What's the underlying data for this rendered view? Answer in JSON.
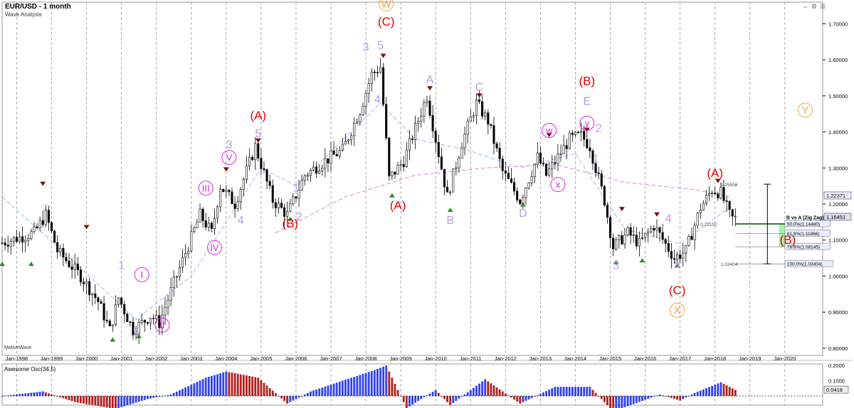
{
  "header": {
    "title": "EUR/USD - 1 month",
    "subtitle": "Wave Analysis"
  },
  "branding": "MotiveWave",
  "toolbar": {
    "nav_icon": "nav-arrows-icon",
    "settings_icon": "settings-icon",
    "close_icon": "close-icon"
  },
  "colors": {
    "bull": "#000000",
    "bear": "#000000",
    "red_labels": "#e00000",
    "orange_labels": "#f7a23c",
    "violet_labels": "#b89ae8",
    "magenta_labels": "#e020e0",
    "osc_up": "#3344ee",
    "osc_down": "#b22222",
    "fib_zone": "#90ee90",
    "fib_line": "#2e8b2e"
  },
  "chart_data": {
    "type": "candlestick",
    "title": "EUR/USD - 1 month",
    "price_axis": {
      "range": [
        0.78,
        1.76
      ],
      "ticks": [
        "1.70000",
        "1.60000",
        "1.50000",
        "1.40000",
        "1.30000",
        "1.20000",
        "1.10000",
        "1.00000",
        "0.90000",
        "0.80000"
      ],
      "current_price_labels": [
        "1.22371",
        "1.16451"
      ]
    },
    "time_axis": {
      "range": [
        "1997-08",
        "2021-02"
      ],
      "ticks": [
        "Jan-1998",
        "Jan-1999",
        "Jan-2000",
        "Jan-2001",
        "Jan-2002",
        "Jan-2003",
        "Jan-2004",
        "Jan-2005",
        "Jan-2006",
        "Jan-2007",
        "Jan-2008",
        "Jan-2009",
        "Jan-2010",
        "Jan-2011",
        "Jan-2012",
        "Jan-2013",
        "Jan-2014",
        "Jan-2015",
        "Jan-2016",
        "Jan-2017",
        "Jan-2018",
        "Jan-2019",
        "Jan-2020"
      ]
    },
    "price_path_keypoints": [
      [
        "1997-08",
        1.09
      ],
      [
        "1997-12",
        1.1
      ],
      [
        "1998-08",
        1.12
      ],
      [
        "1998-12",
        1.17
      ],
      [
        "1999-04",
        1.07
      ],
      [
        "1999-12",
        1.0
      ],
      [
        "2000-06",
        0.93
      ],
      [
        "2000-10",
        0.85
      ],
      [
        "2001-01",
        0.94
      ],
      [
        "2001-06",
        0.85
      ],
      [
        "2001-12",
        0.89
      ],
      [
        "2002-03",
        0.87
      ],
      [
        "2002-08",
        0.98
      ],
      [
        "2003-05",
        1.17
      ],
      [
        "2003-09",
        1.12
      ],
      [
        "2003-12",
        1.25
      ],
      [
        "2004-05",
        1.2
      ],
      [
        "2004-12",
        1.36
      ],
      [
        "2005-06",
        1.21
      ],
      [
        "2005-11",
        1.17
      ],
      [
        "2006-05",
        1.28
      ],
      [
        "2006-12",
        1.32
      ],
      [
        "2007-06",
        1.35
      ],
      [
        "2007-12",
        1.46
      ],
      [
        "2008-04",
        1.56
      ],
      [
        "2008-07",
        1.58
      ],
      [
        "2008-10",
        1.27
      ],
      [
        "2009-03",
        1.32
      ],
      [
        "2009-11",
        1.5
      ],
      [
        "2010-06",
        1.22
      ],
      [
        "2010-11",
        1.37
      ],
      [
        "2011-04",
        1.48
      ],
      [
        "2011-08",
        1.43
      ],
      [
        "2012-01",
        1.29
      ],
      [
        "2012-07",
        1.21
      ],
      [
        "2013-01",
        1.33
      ],
      [
        "2013-04",
        1.28
      ],
      [
        "2013-12",
        1.38
      ],
      [
        "2014-04",
        1.39
      ],
      [
        "2014-07",
        1.36
      ],
      [
        "2014-12",
        1.21
      ],
      [
        "2015-03",
        1.08
      ],
      [
        "2015-08",
        1.12
      ],
      [
        "2015-12",
        1.09
      ],
      [
        "2016-05",
        1.14
      ],
      [
        "2016-12",
        1.05
      ],
      [
        "2017-04",
        1.07
      ],
      [
        "2017-09",
        1.19
      ],
      [
        "2018-01",
        1.24
      ],
      [
        "2018-04",
        1.23
      ],
      [
        "2018-07",
        1.17
      ],
      [
        "2018-08",
        1.16
      ]
    ],
    "wave_labels": [
      {
        "text": "W",
        "date": "2008-08",
        "price": 1.745,
        "style": "orange-circle"
      },
      {
        "text": "(C)",
        "date": "2008-08",
        "price": 1.695,
        "style": "red"
      },
      {
        "text": "3",
        "date": "2008-01",
        "price": 1.625,
        "style": "violet"
      },
      {
        "text": "5",
        "date": "2008-06",
        "price": 1.63,
        "style": "violet"
      },
      {
        "text": "4",
        "date": "2008-05",
        "price": 1.48,
        "style": "violet"
      },
      {
        "text": "(A)",
        "date": "2004-12",
        "price": 1.435,
        "style": "red"
      },
      {
        "text": "5",
        "date": "2004-12",
        "price": 1.385,
        "style": "violet"
      },
      {
        "text": "3",
        "date": "2004-02",
        "price": 1.355,
        "style": "violet"
      },
      {
        "text": "V",
        "date": "2004-02",
        "price": 1.32,
        "style": "magenta-circle"
      },
      {
        "text": "III",
        "date": "2003-06",
        "price": 1.235,
        "style": "magenta-circle"
      },
      {
        "text": "4",
        "date": "2004-06",
        "price": 1.145,
        "style": "violet"
      },
      {
        "text": "IV",
        "date": "2003-09",
        "price": 1.07,
        "style": "magenta-circle"
      },
      {
        "text": "I",
        "date": "2001-08",
        "price": 0.995,
        "style": "magenta-circle"
      },
      {
        "text": "II",
        "date": "2002-03",
        "price": 0.855,
        "style": "magenta-circle"
      },
      {
        "text": "1",
        "date": "2001-01",
        "price": 1.02,
        "style": "violet"
      },
      {
        "text": "2",
        "date": "2001-06",
        "price": 0.835,
        "style": "violet"
      },
      {
        "text": "1",
        "date": "2006-01",
        "price": 1.235,
        "style": "violet"
      },
      {
        "text": "2",
        "date": "2006-02",
        "price": 1.155,
        "style": "violet"
      },
      {
        "text": "(B)",
        "date": "2005-11",
        "price": 1.135,
        "style": "red"
      },
      {
        "text": "(A)",
        "date": "2008-12",
        "price": 1.185,
        "style": "red"
      },
      {
        "text": "A",
        "date": "2009-11",
        "price": 1.535,
        "style": "violet"
      },
      {
        "text": "B",
        "date": "2010-06",
        "price": 1.145,
        "style": "violet"
      },
      {
        "text": "C",
        "date": "2011-04",
        "price": 1.515,
        "style": "violet"
      },
      {
        "text": "D",
        "date": "2012-07",
        "price": 1.165,
        "style": "violet"
      },
      {
        "text": "w",
        "date": "2013-04",
        "price": 1.395,
        "style": "magenta-circle"
      },
      {
        "text": "x",
        "date": "2013-07",
        "price": 1.245,
        "style": "magenta-circle"
      },
      {
        "text": "y",
        "date": "2014-05",
        "price": 1.415,
        "style": "magenta-circle"
      },
      {
        "text": "(B)",
        "date": "2014-05",
        "price": 1.53,
        "style": "red"
      },
      {
        "text": "E",
        "date": "2014-05",
        "price": 1.475,
        "style": "violet"
      },
      {
        "text": "2",
        "date": "2014-09",
        "price": 1.4,
        "style": "violet"
      },
      {
        "text": "1",
        "date": "2014-08",
        "price": 1.315,
        "style": "violet"
      },
      {
        "text": "3",
        "date": "2015-03",
        "price": 1.02,
        "style": "violet"
      },
      {
        "text": "4",
        "date": "2016-09",
        "price": 1.15,
        "style": "violet"
      },
      {
        "text": "5",
        "date": "2016-12",
        "price": 1.025,
        "style": "violet"
      },
      {
        "text": "(C)",
        "date": "2016-12",
        "price": 0.95,
        "style": "red"
      },
      {
        "text": "X",
        "date": "2016-12",
        "price": 0.895,
        "style": "orange-circle"
      },
      {
        "text": "(A)",
        "date": "2018-01",
        "price": 1.275,
        "style": "red"
      },
      {
        "text": "Y",
        "date": "2020-08",
        "price": 1.45,
        "style": "orange-circle"
      },
      {
        "text": "(B)",
        "date": "2020-02",
        "price": 1.09,
        "style": "red"
      }
    ],
    "swing_markers": [
      {
        "date": "1998-10",
        "price": 1.25,
        "type": "high"
      },
      {
        "date": "2000-01",
        "price": 1.13,
        "type": "high"
      },
      {
        "date": "2004-01",
        "price": 1.29,
        "type": "high"
      },
      {
        "date": "2004-12",
        "price": 1.37,
        "type": "high"
      },
      {
        "date": "2008-07",
        "price": 1.605,
        "type": "high"
      },
      {
        "date": "2009-11",
        "price": 1.515,
        "type": "high"
      },
      {
        "date": "2011-04",
        "price": 1.495,
        "type": "high"
      },
      {
        "date": "2013-04",
        "price": 1.385,
        "type": "high"
      },
      {
        "date": "2014-05",
        "price": 1.4,
        "type": "high"
      },
      {
        "date": "2015-05",
        "price": 1.18,
        "type": "high"
      },
      {
        "date": "2016-05",
        "price": 1.165,
        "type": "high"
      },
      {
        "date": "2018-02",
        "price": 1.258,
        "type": "high"
      },
      {
        "date": "1997-08",
        "price": 1.04,
        "type": "low"
      },
      {
        "date": "1998-06",
        "price": 1.04,
        "type": "low"
      },
      {
        "date": "2000-10",
        "price": 0.83,
        "type": "low"
      },
      {
        "date": "2001-07",
        "price": 0.84,
        "type": "low"
      },
      {
        "date": "2005-11",
        "price": 1.165,
        "type": "low"
      },
      {
        "date": "2008-10",
        "price": 1.23,
        "type": "low"
      },
      {
        "date": "2010-06",
        "price": 1.19,
        "type": "low"
      },
      {
        "date": "2012-07",
        "price": 1.205,
        "type": "low"
      },
      {
        "date": "2015-03",
        "price": 1.045,
        "type": "low"
      },
      {
        "date": "2015-12",
        "price": 1.05,
        "type": "low"
      },
      {
        "date": "2016-12",
        "price": 1.035,
        "type": "low"
      }
    ],
    "moving_averages": [
      {
        "name": "",
        "style": "dashed",
        "color": "#8fb0ee",
        "points": [
          [
            "1997-08",
            1.22
          ],
          [
            "1999-06",
            1.06
          ],
          [
            "2001-06",
            0.88
          ],
          [
            "2003-01",
            1.0
          ],
          [
            "2005-01",
            1.3
          ],
          [
            "2006-01",
            1.25
          ],
          [
            "2008-06",
            1.48
          ],
          [
            "2009-06",
            1.38
          ],
          [
            "2010-12",
            1.35
          ],
          [
            "2012-06",
            1.3
          ],
          [
            "2014-01",
            1.34
          ],
          [
            "2015-06",
            1.13
          ],
          [
            "2017-01",
            1.09
          ],
          [
            "2018-06",
            1.19
          ]
        ]
      },
      {
        "name": "",
        "style": "dashed",
        "color": "#d47fd4",
        "points": [
          [
            "2005-06",
            1.12
          ],
          [
            "2007-06",
            1.22
          ],
          [
            "2009-06",
            1.28
          ],
          [
            "2011-06",
            1.3
          ],
          [
            "2013-06",
            1.31
          ],
          [
            "2015-06",
            1.26
          ],
          [
            "2017-06",
            1.24
          ],
          [
            "2018-06",
            1.22
          ]
        ]
      }
    ],
    "annotations": [
      {
        "text": "1.25556",
        "date": "2018-03",
        "price": 1.255
      },
      {
        "text": "0.22152",
        "date": "2017-08",
        "price": 1.145
      },
      {
        "text": "1.03404",
        "date": "2018-03",
        "price": 1.034
      }
    ],
    "fibonacci": {
      "title": "B vs A (Zig Zag)",
      "levels": [
        {
          "label": "50.0%(1.14480)",
          "price": 1.1448
        },
        {
          "label": "61.8%(1.11866)",
          "price": 1.11866
        },
        {
          "label": "78.6%(1.08145)",
          "price": 1.08145
        },
        {
          "label": "100.0%(1.03404)",
          "price": 1.03404
        }
      ]
    },
    "oscillator": {
      "title": "Awesome Osc(34,5)",
      "range": [
        -0.06,
        0.21
      ],
      "ticks": [
        "0.2000",
        "0.1000"
      ],
      "current_label": "0.0418",
      "keypoints": [
        [
          "1997-08",
          0.0
        ],
        [
          "1998-10",
          0.03
        ],
        [
          "1999-09",
          -0.04
        ],
        [
          "2000-11",
          -0.085
        ],
        [
          "2001-10",
          -0.02
        ],
        [
          "2002-06",
          0.01
        ],
        [
          "2003-06",
          0.12
        ],
        [
          "2004-01",
          0.16
        ],
        [
          "2004-12",
          0.12
        ],
        [
          "2005-10",
          -0.05
        ],
        [
          "2006-06",
          0.03
        ],
        [
          "2008-04",
          0.17
        ],
        [
          "2008-08",
          0.2
        ],
        [
          "2009-03",
          -0.08
        ],
        [
          "2010-01",
          0.04
        ],
        [
          "2010-06",
          -0.06
        ],
        [
          "2011-06",
          0.11
        ],
        [
          "2012-06",
          -0.05
        ],
        [
          "2013-06",
          0.06
        ],
        [
          "2014-06",
          0.06
        ],
        [
          "2015-02",
          -0.1
        ],
        [
          "2015-08",
          -0.06
        ],
        [
          "2016-06",
          0.01
        ],
        [
          "2017-01",
          -0.03
        ],
        [
          "2017-06",
          0.02
        ],
        [
          "2018-03",
          0.09
        ],
        [
          "2018-08",
          0.04
        ]
      ]
    }
  }
}
